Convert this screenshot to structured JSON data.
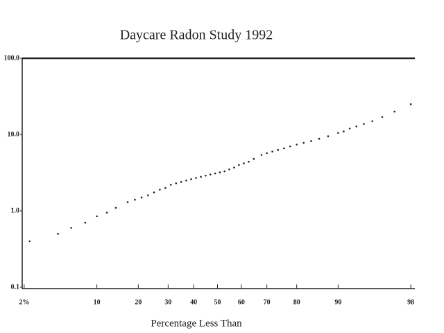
{
  "chart_data": {
    "type": "scatter",
    "title": "Daycare Radon Study 1992",
    "x_label": "Percentage Less Than",
    "x_scale": "probability",
    "y_scale": "log",
    "grid": false,
    "color": "#222222",
    "xlim": [
      1.9,
      98.2
    ],
    "ylim": [
      0.1,
      100
    ],
    "xticks": [
      {
        "value": 2,
        "label": "2%"
      },
      10,
      20,
      30,
      40,
      50,
      60,
      70,
      80,
      90,
      98
    ],
    "yticks": [
      0.1,
      {
        "value": 1,
        "label": "1.0"
      },
      {
        "value": 10,
        "label": "10.0"
      },
      {
        "value": 100,
        "label": "100.0"
      }
    ],
    "x": [
      2.3,
      4.5,
      6,
      8,
      10,
      12,
      14,
      17,
      19,
      21,
      23,
      25,
      27,
      29,
      31,
      33,
      35,
      37,
      39,
      41,
      43,
      45,
      47,
      49,
      51,
      53,
      55,
      57,
      59,
      61,
      63,
      65,
      68,
      70,
      72,
      74,
      76,
      78,
      80,
      82,
      84,
      86,
      88,
      90,
      91,
      92,
      93,
      94,
      95,
      96,
      97,
      98
    ],
    "values": [
      0.4,
      0.5,
      0.6,
      0.7,
      0.85,
      0.95,
      1.1,
      1.3,
      1.4,
      1.5,
      1.6,
      1.75,
      1.9,
      2.0,
      2.2,
      2.3,
      2.4,
      2.5,
      2.6,
      2.7,
      2.8,
      2.9,
      3.0,
      3.1,
      3.2,
      3.3,
      3.5,
      3.7,
      4.0,
      4.2,
      4.4,
      4.8,
      5.4,
      5.7,
      6.0,
      6.3,
      6.6,
      7.0,
      7.4,
      7.8,
      8.2,
      8.8,
      9.5,
      10.5,
      11,
      12,
      12.8,
      13.8,
      15,
      17,
      20,
      25
    ]
  }
}
